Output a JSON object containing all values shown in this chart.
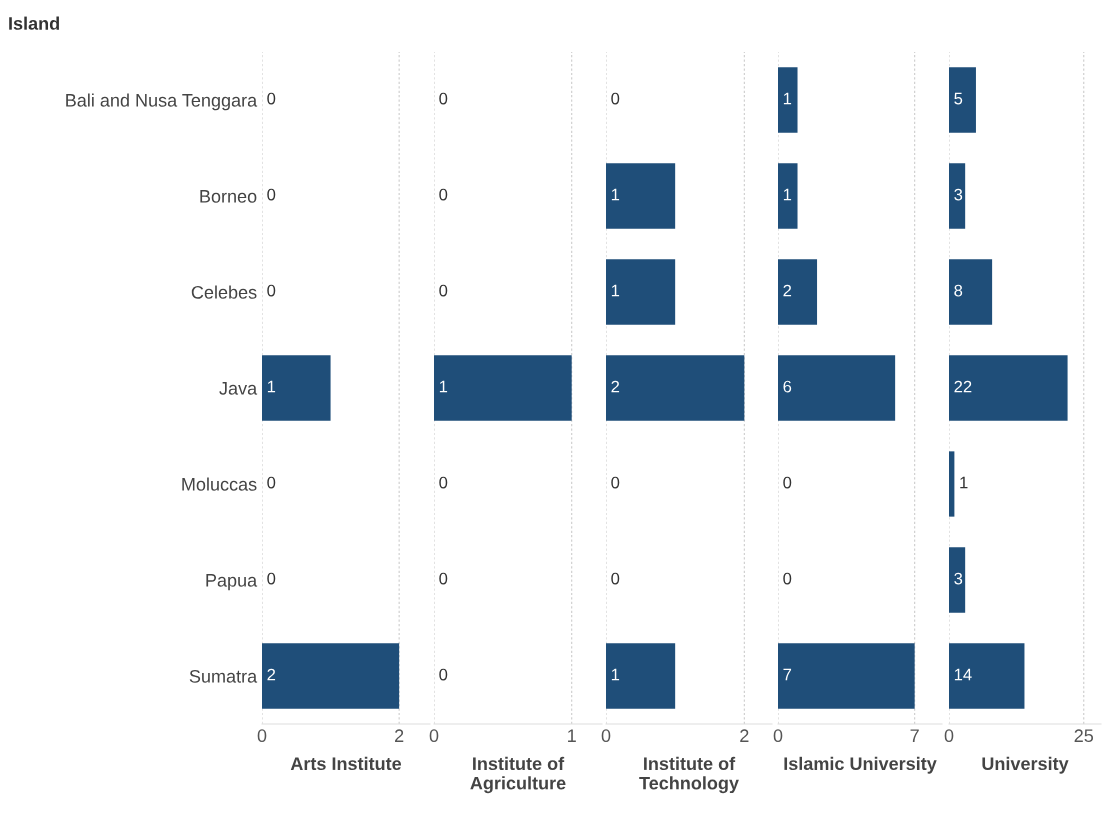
{
  "chart_data": [
    {
      "type": "bar",
      "orientation": "horizontal",
      "ylabel": "Island",
      "xlabel": "Arts Institute",
      "categories": [
        "Bali and Nusa Tenggara",
        "Borneo",
        "Celebes",
        "Java",
        "Moluccas",
        "Papua",
        "Sumatra"
      ],
      "values": [
        0,
        0,
        0,
        1,
        0,
        0,
        2
      ],
      "color": "#1f4e79",
      "xlim": [
        0,
        2.45
      ],
      "xticks": [
        0,
        2
      ],
      "grid": "x",
      "data_labels": true
    },
    {
      "type": "bar",
      "orientation": "horizontal",
      "xlabel": "Institute of\nAgriculture",
      "values": [
        0,
        0,
        0,
        1,
        0,
        0,
        0
      ],
      "color": "#1f4e79",
      "xlim": [
        0,
        1.22
      ],
      "xticks": [
        0,
        1
      ],
      "grid": "x",
      "data_labels": true,
      "tick_labels": "x"
    },
    {
      "type": "bar",
      "orientation": "horizontal",
      "xlabel": "Institute of\nTechnology",
      "values": [
        0,
        1,
        1,
        2,
        0,
        0,
        1
      ],
      "color": "#1f4e79",
      "xlim": [
        0,
        2.4
      ],
      "xticks": [
        0,
        2
      ],
      "grid": "x",
      "data_labels": true,
      "tick_labels": "x"
    },
    {
      "type": "bar",
      "orientation": "horizontal",
      "xlabel": "Islamic University",
      "values": [
        1,
        1,
        2,
        6,
        0,
        0,
        7
      ],
      "color": "#1f4e79",
      "xlim": [
        0,
        8.4
      ],
      "xticks": [
        0,
        7
      ],
      "grid": "x",
      "data_labels": true,
      "tick_labels": "x"
    },
    {
      "type": "bar",
      "orientation": "horizontal",
      "xlabel": "University",
      "values": [
        5,
        3,
        8,
        22,
        1,
        3,
        14
      ],
      "color": "#1f4e79",
      "xlim": [
        0,
        28.2
      ],
      "xticks": [
        0,
        25
      ],
      "grid": "x",
      "data_labels": true,
      "tick_labels": "x"
    }
  ]
}
